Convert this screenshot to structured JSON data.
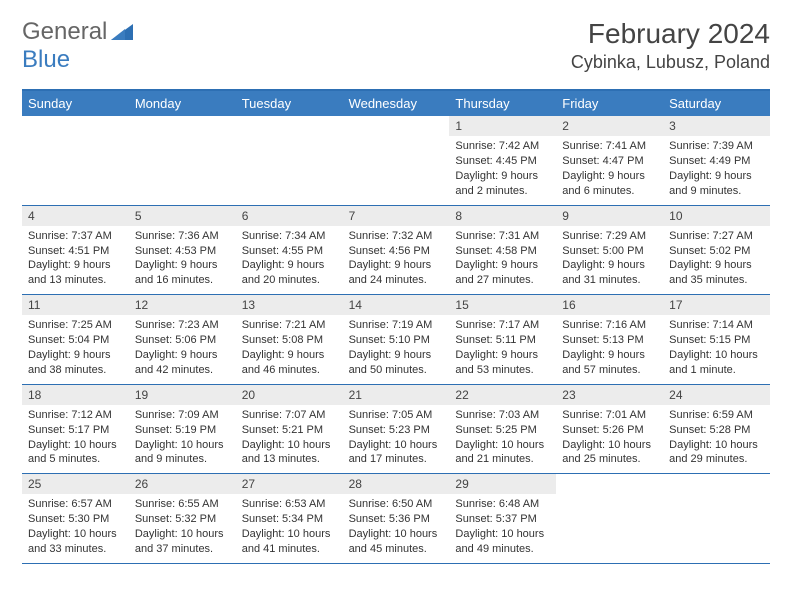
{
  "logo": {
    "general": "General",
    "blue": "Blue"
  },
  "title": {
    "month_year": "February 2024",
    "location": "Cybinka, Lubusz, Poland"
  },
  "colors": {
    "header_bar": "#3a7cbf",
    "header_border": "#2d6fb3",
    "daynum_bg": "#ececec",
    "text": "#333333",
    "logo_blue": "#3a7cbf",
    "background": "#ffffff"
  },
  "day_names": [
    "Sunday",
    "Monday",
    "Tuesday",
    "Wednesday",
    "Thursday",
    "Friday",
    "Saturday"
  ],
  "weeks": [
    [
      null,
      null,
      null,
      null,
      {
        "n": "1",
        "sunrise": "Sunrise: 7:42 AM",
        "sunset": "Sunset: 4:45 PM",
        "day1": "Daylight: 9 hours",
        "day2": "and 2 minutes."
      },
      {
        "n": "2",
        "sunrise": "Sunrise: 7:41 AM",
        "sunset": "Sunset: 4:47 PM",
        "day1": "Daylight: 9 hours",
        "day2": "and 6 minutes."
      },
      {
        "n": "3",
        "sunrise": "Sunrise: 7:39 AM",
        "sunset": "Sunset: 4:49 PM",
        "day1": "Daylight: 9 hours",
        "day2": "and 9 minutes."
      }
    ],
    [
      {
        "n": "4",
        "sunrise": "Sunrise: 7:37 AM",
        "sunset": "Sunset: 4:51 PM",
        "day1": "Daylight: 9 hours",
        "day2": "and 13 minutes."
      },
      {
        "n": "5",
        "sunrise": "Sunrise: 7:36 AM",
        "sunset": "Sunset: 4:53 PM",
        "day1": "Daylight: 9 hours",
        "day2": "and 16 minutes."
      },
      {
        "n": "6",
        "sunrise": "Sunrise: 7:34 AM",
        "sunset": "Sunset: 4:55 PM",
        "day1": "Daylight: 9 hours",
        "day2": "and 20 minutes."
      },
      {
        "n": "7",
        "sunrise": "Sunrise: 7:32 AM",
        "sunset": "Sunset: 4:56 PM",
        "day1": "Daylight: 9 hours",
        "day2": "and 24 minutes."
      },
      {
        "n": "8",
        "sunrise": "Sunrise: 7:31 AM",
        "sunset": "Sunset: 4:58 PM",
        "day1": "Daylight: 9 hours",
        "day2": "and 27 minutes."
      },
      {
        "n": "9",
        "sunrise": "Sunrise: 7:29 AM",
        "sunset": "Sunset: 5:00 PM",
        "day1": "Daylight: 9 hours",
        "day2": "and 31 minutes."
      },
      {
        "n": "10",
        "sunrise": "Sunrise: 7:27 AM",
        "sunset": "Sunset: 5:02 PM",
        "day1": "Daylight: 9 hours",
        "day2": "and 35 minutes."
      }
    ],
    [
      {
        "n": "11",
        "sunrise": "Sunrise: 7:25 AM",
        "sunset": "Sunset: 5:04 PM",
        "day1": "Daylight: 9 hours",
        "day2": "and 38 minutes."
      },
      {
        "n": "12",
        "sunrise": "Sunrise: 7:23 AM",
        "sunset": "Sunset: 5:06 PM",
        "day1": "Daylight: 9 hours",
        "day2": "and 42 minutes."
      },
      {
        "n": "13",
        "sunrise": "Sunrise: 7:21 AM",
        "sunset": "Sunset: 5:08 PM",
        "day1": "Daylight: 9 hours",
        "day2": "and 46 minutes."
      },
      {
        "n": "14",
        "sunrise": "Sunrise: 7:19 AM",
        "sunset": "Sunset: 5:10 PM",
        "day1": "Daylight: 9 hours",
        "day2": "and 50 minutes."
      },
      {
        "n": "15",
        "sunrise": "Sunrise: 7:17 AM",
        "sunset": "Sunset: 5:11 PM",
        "day1": "Daylight: 9 hours",
        "day2": "and 53 minutes."
      },
      {
        "n": "16",
        "sunrise": "Sunrise: 7:16 AM",
        "sunset": "Sunset: 5:13 PM",
        "day1": "Daylight: 9 hours",
        "day2": "and 57 minutes."
      },
      {
        "n": "17",
        "sunrise": "Sunrise: 7:14 AM",
        "sunset": "Sunset: 5:15 PM",
        "day1": "Daylight: 10 hours",
        "day2": "and 1 minute."
      }
    ],
    [
      {
        "n": "18",
        "sunrise": "Sunrise: 7:12 AM",
        "sunset": "Sunset: 5:17 PM",
        "day1": "Daylight: 10 hours",
        "day2": "and 5 minutes."
      },
      {
        "n": "19",
        "sunrise": "Sunrise: 7:09 AM",
        "sunset": "Sunset: 5:19 PM",
        "day1": "Daylight: 10 hours",
        "day2": "and 9 minutes."
      },
      {
        "n": "20",
        "sunrise": "Sunrise: 7:07 AM",
        "sunset": "Sunset: 5:21 PM",
        "day1": "Daylight: 10 hours",
        "day2": "and 13 minutes."
      },
      {
        "n": "21",
        "sunrise": "Sunrise: 7:05 AM",
        "sunset": "Sunset: 5:23 PM",
        "day1": "Daylight: 10 hours",
        "day2": "and 17 minutes."
      },
      {
        "n": "22",
        "sunrise": "Sunrise: 7:03 AM",
        "sunset": "Sunset: 5:25 PM",
        "day1": "Daylight: 10 hours",
        "day2": "and 21 minutes."
      },
      {
        "n": "23",
        "sunrise": "Sunrise: 7:01 AM",
        "sunset": "Sunset: 5:26 PM",
        "day1": "Daylight: 10 hours",
        "day2": "and 25 minutes."
      },
      {
        "n": "24",
        "sunrise": "Sunrise: 6:59 AM",
        "sunset": "Sunset: 5:28 PM",
        "day1": "Daylight: 10 hours",
        "day2": "and 29 minutes."
      }
    ],
    [
      {
        "n": "25",
        "sunrise": "Sunrise: 6:57 AM",
        "sunset": "Sunset: 5:30 PM",
        "day1": "Daylight: 10 hours",
        "day2": "and 33 minutes."
      },
      {
        "n": "26",
        "sunrise": "Sunrise: 6:55 AM",
        "sunset": "Sunset: 5:32 PM",
        "day1": "Daylight: 10 hours",
        "day2": "and 37 minutes."
      },
      {
        "n": "27",
        "sunrise": "Sunrise: 6:53 AM",
        "sunset": "Sunset: 5:34 PM",
        "day1": "Daylight: 10 hours",
        "day2": "and 41 minutes."
      },
      {
        "n": "28",
        "sunrise": "Sunrise: 6:50 AM",
        "sunset": "Sunset: 5:36 PM",
        "day1": "Daylight: 10 hours",
        "day2": "and 45 minutes."
      },
      {
        "n": "29",
        "sunrise": "Sunrise: 6:48 AM",
        "sunset": "Sunset: 5:37 PM",
        "day1": "Daylight: 10 hours",
        "day2": "and 49 minutes."
      },
      null,
      null
    ]
  ]
}
